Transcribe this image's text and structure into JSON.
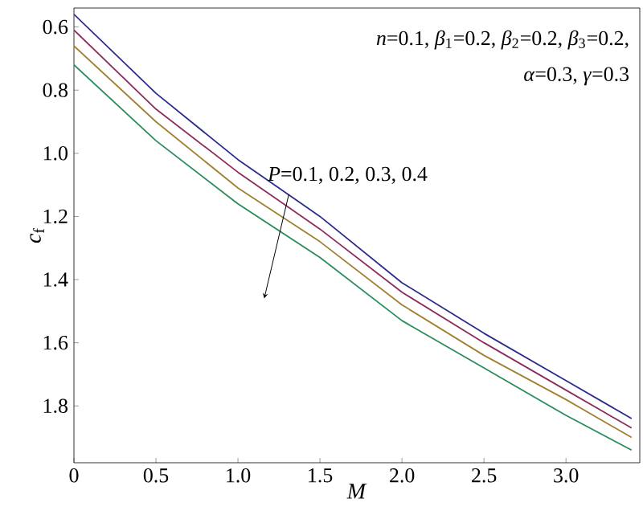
{
  "chart_data": {
    "type": "line",
    "xlabel": "*M*",
    "ylabel": "*c*$_{f}$",
    "annotations": [
      "*n*=0.1, *β*$_{1}$=0.2, *β*$_{2}$=0.2, *β*$_{3}$=0.2,",
      "*α*=0.3, *γ*=0.3",
      "*P*=0.1, 0.2, 0.3, 0.4"
    ],
    "x": [
      0,
      0.5,
      1.0,
      1.5,
      2.0,
      2.5,
      3.0,
      3.4
    ],
    "series": [
      {
        "color": "#2b2b8c",
        "values": [
          0.56,
          0.81,
          1.02,
          1.2,
          1.41,
          1.57,
          1.72,
          1.84
        ]
      },
      {
        "color": "#8c2b5c",
        "values": [
          0.61,
          0.86,
          1.06,
          1.24,
          1.44,
          1.6,
          1.75,
          1.87
        ]
      },
      {
        "color": "#a08030",
        "values": [
          0.66,
          0.9,
          1.11,
          1.28,
          1.48,
          1.64,
          1.78,
          1.9
        ]
      },
      {
        "color": "#2b8c5c",
        "values": [
          0.72,
          0.96,
          1.16,
          1.33,
          1.53,
          1.68,
          1.83,
          1.94
        ]
      }
    ],
    "xlim": [
      0,
      3.45
    ],
    "ylim": [
      1.98,
      0.54
    ],
    "xticks": [
      0,
      0.5,
      {
        "value": 1,
        "label": "1.0"
      },
      1.5,
      {
        "value": 2,
        "label": "2.0"
      },
      2.5,
      {
        "value": 3,
        "label": "3.0"
      }
    ],
    "yticks": [
      0.6,
      0.8,
      {
        "value": 1,
        "label": "1.0"
      },
      1.2,
      1.4,
      1.6,
      1.8
    ],
    "grid": false,
    "legend": false,
    "marker": "none",
    "line_style": "solid"
  }
}
